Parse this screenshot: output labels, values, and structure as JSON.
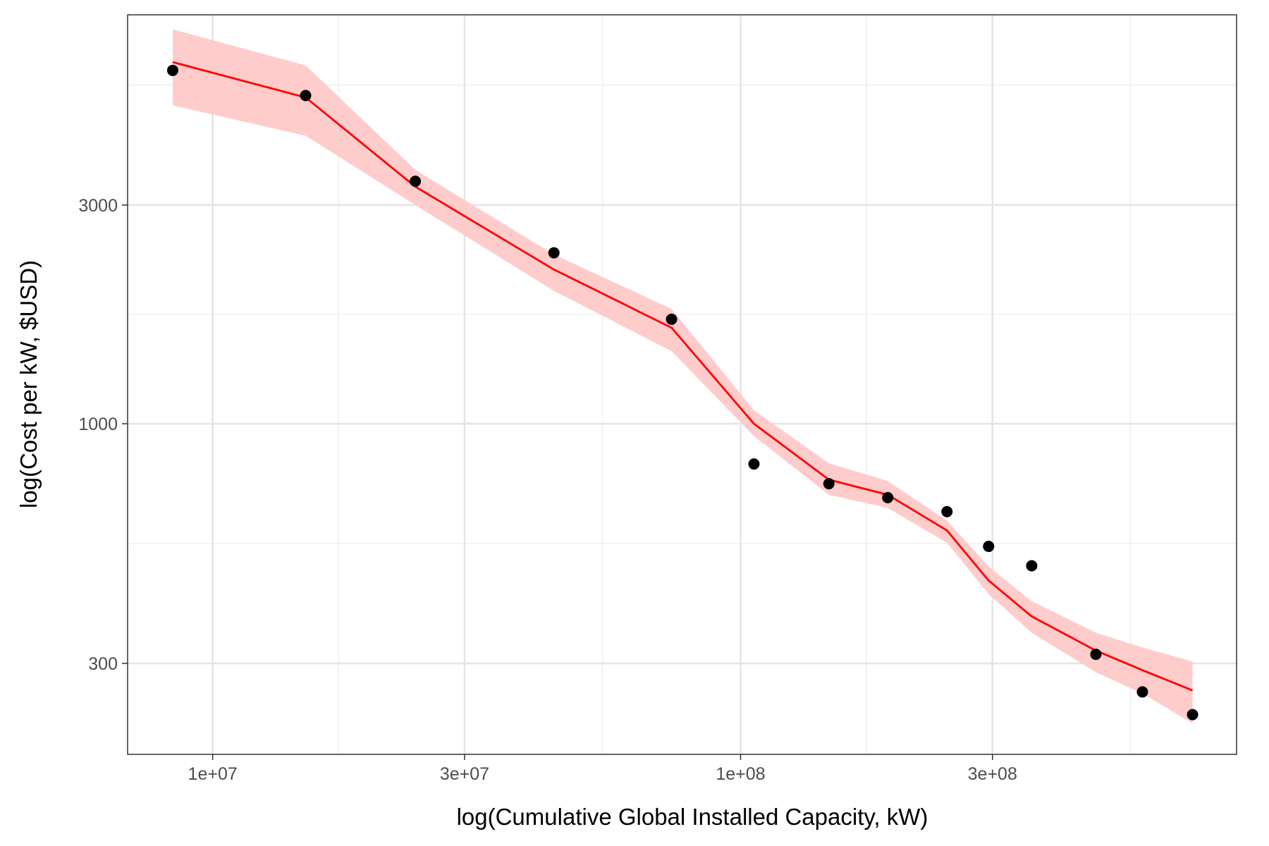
{
  "chart_data": {
    "type": "scatter",
    "title": "",
    "xlabel": "log(Cumulative Global Installed Capacity, kW)",
    "ylabel": "log(Cost per kW, $USD)",
    "x_scale": "log10",
    "y_scale": "log10",
    "xlim": [
      6900000,
      870000000
    ],
    "ylim": [
      190,
      7800
    ],
    "x_ticks": [
      {
        "value": 10000000,
        "label": "1e+07"
      },
      {
        "value": 30000000,
        "label": "3e+07"
      },
      {
        "value": 100000000,
        "label": "1e+08"
      },
      {
        "value": 300000000,
        "label": "3e+08"
      }
    ],
    "y_ticks": [
      {
        "value": 300,
        "label": "300"
      },
      {
        "value": 1000,
        "label": "1000"
      },
      {
        "value": 3000,
        "label": "3000"
      }
    ],
    "x_minor_gridlines": [
      17320508,
      54772256,
      173205081,
      547722558
    ],
    "y_minor_gridlines": [
      547.7,
      1732,
      5477
    ],
    "grid": true,
    "legend": "none",
    "points": {
      "x": [
        8400000,
        15000000,
        24200000,
        44300000,
        74000000,
        106000000,
        147000000,
        190000000,
        246000000,
        295000000,
        356000000,
        471000000,
        577000000,
        718000000
      ],
      "y": [
        5900,
        5200,
        3380,
        2360,
        1690,
        817,
        740,
        690,
        643,
        540,
        490,
        314,
        260,
        232
      ],
      "color": "#000000"
    },
    "fit_line": {
      "x": [
        8400000,
        15000000,
        24200000,
        44300000,
        74000000,
        106000000,
        147000000,
        190000000,
        246000000,
        295000000,
        356000000,
        471000000,
        577000000,
        718000000
      ],
      "y": [
        6150,
        5150,
        3290,
        2170,
        1620,
        1000,
        755,
        700,
        585,
        455,
        380,
        320,
        290,
        262
      ],
      "lower": [
        4950,
        4250,
        3000,
        1950,
        1440,
        940,
        700,
        655,
        550,
        425,
        350,
        287,
        258,
        222
      ],
      "upper": [
        7250,
        6050,
        3580,
        2340,
        1780,
        1070,
        820,
        750,
        615,
        488,
        410,
        350,
        325,
        303
      ],
      "line_color": "#ff0000",
      "band_color": "#ffcccc"
    }
  }
}
